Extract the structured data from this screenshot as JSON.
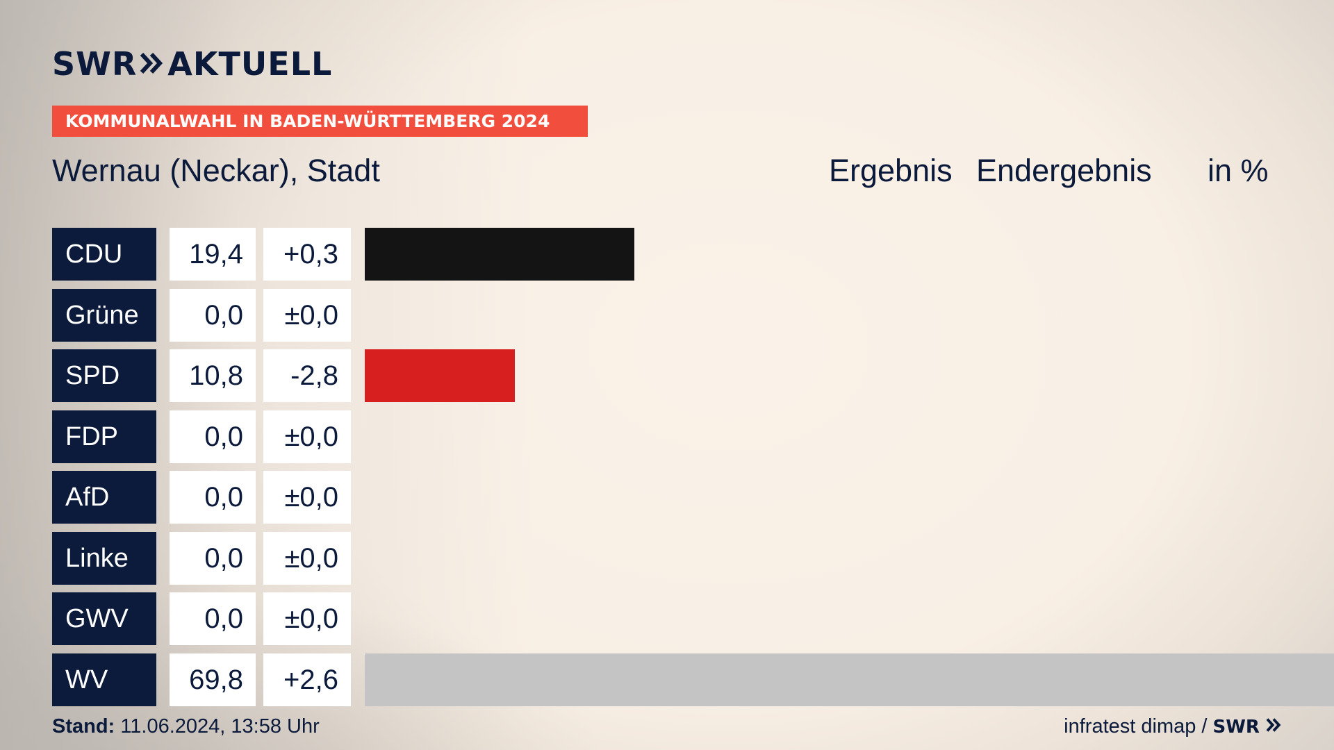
{
  "brand": {
    "logo_text": "SWR",
    "logo_suffix": "AKTUELL"
  },
  "banner": {
    "text": "KOMMUNALWAHL IN BADEN-WÜRTTEMBERG 2024",
    "color": "#f24e3d"
  },
  "header": {
    "place": "Wernau (Neckar), Stadt",
    "ergebnis": "Ergebnis",
    "endergebnis": "Endergebnis",
    "unit": "in %"
  },
  "chart_data": {
    "type": "bar",
    "orientation": "horizontal",
    "unit": "%",
    "categories": [
      "CDU",
      "Grüne",
      "SPD",
      "FDP",
      "AfD",
      "Linke",
      "GWV",
      "WV"
    ],
    "values": [
      19.4,
      0.0,
      10.8,
      0.0,
      0.0,
      0.0,
      0.0,
      69.8
    ],
    "value_labels": [
      "19,4",
      "0,0",
      "10,8",
      "0,0",
      "0,0",
      "0,0",
      "0,0",
      "69,8"
    ],
    "change_labels": [
      "+0,3",
      "±0,0",
      "-2,8",
      "±0,0",
      "±0,0",
      "±0,0",
      "±0,0",
      "+2,6"
    ],
    "changes": [
      0.3,
      0.0,
      -2.8,
      0.0,
      0.0,
      0.0,
      0.0,
      2.6
    ],
    "colors": [
      "#141414",
      "#3a8a2e",
      "#d71f20",
      "#f5d50b",
      "#1a9fd8",
      "#b0237d",
      "#8a8a8a",
      "#c4c4c4"
    ],
    "xlim": [
      0,
      69.8
    ]
  },
  "footer": {
    "stand_label": "Stand:",
    "stand_value": "11.06.2024, 13:58 Uhr",
    "source": "infratest dimap /",
    "source_brand": "SWR"
  }
}
